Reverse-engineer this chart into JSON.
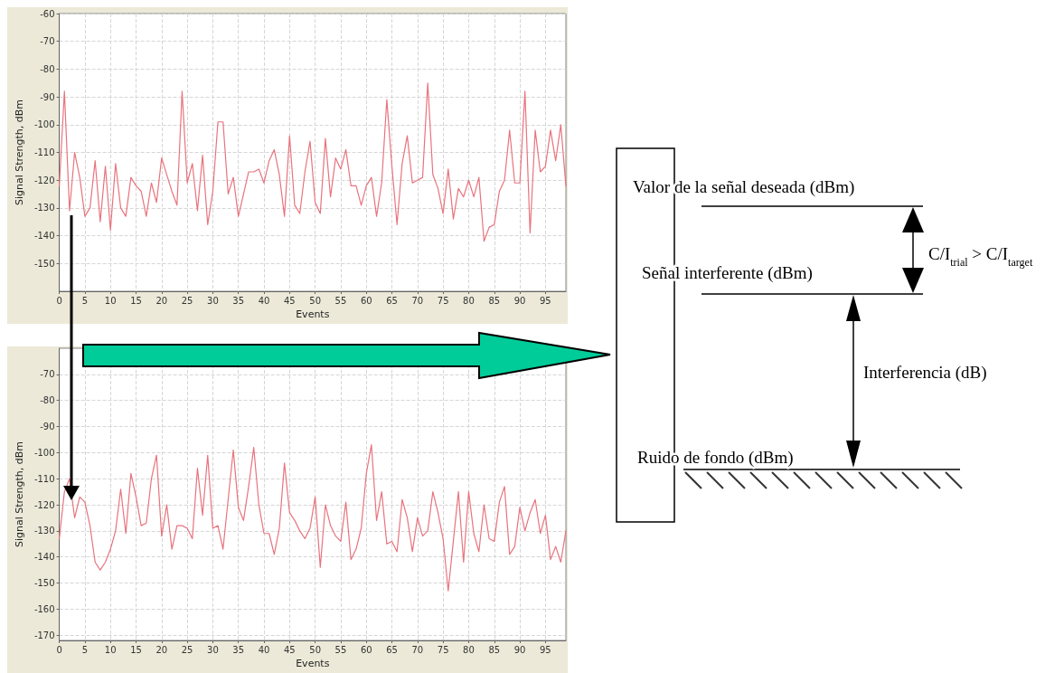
{
  "chart_data": [
    {
      "type": "line",
      "xlabel": "Events",
      "ylabel": "Signal Strength, dBm",
      "xlim": [
        0,
        99
      ],
      "ylim": [
        -160,
        -60
      ],
      "xticks": [
        0,
        5,
        10,
        15,
        20,
        25,
        30,
        35,
        40,
        45,
        50,
        55,
        60,
        65,
        70,
        75,
        80,
        85,
        90,
        95
      ],
      "yticks": [
        -150,
        -140,
        -130,
        -120,
        -110,
        -100,
        -90,
        -80,
        -70,
        -60
      ],
      "grid": true,
      "marker": "none",
      "line_style": "solid",
      "x": [
        0,
        1,
        2,
        3,
        4,
        5,
        6,
        7,
        8,
        9,
        10,
        11,
        12,
        13,
        14,
        15,
        16,
        17,
        18,
        19,
        20,
        21,
        22,
        23,
        24,
        25,
        26,
        27,
        28,
        29,
        30,
        31,
        32,
        33,
        34,
        35,
        36,
        37,
        38,
        39,
        40,
        41,
        42,
        43,
        44,
        45,
        46,
        47,
        48,
        49,
        50,
        51,
        52,
        53,
        54,
        55,
        56,
        57,
        58,
        59,
        60,
        61,
        62,
        63,
        64,
        65,
        66,
        67,
        68,
        69,
        70,
        71,
        72,
        73,
        74,
        75,
        76,
        77,
        78,
        79,
        80,
        81,
        82,
        83,
        84,
        85,
        86,
        87,
        88,
        89,
        90,
        91,
        92,
        93,
        94,
        95,
        96,
        97,
        98,
        99
      ],
      "series": [
        {
          "color": "#e8737d",
          "values": [
            -122,
            -88,
            -131,
            -110,
            -119,
            -133,
            -130,
            -113,
            -135,
            -115,
            -138,
            -114,
            -130,
            -133,
            -119,
            -122,
            -124,
            -133,
            -121,
            -128,
            -112,
            -118,
            -124,
            -129,
            -88,
            -121,
            -114,
            -131,
            -111,
            -136,
            -124,
            -99,
            -99,
            -125,
            -119,
            -133,
            -125,
            -117,
            -117,
            -116,
            -121,
            -113,
            -109,
            -118,
            -133,
            -104,
            -129,
            -132,
            -117,
            -106,
            -128,
            -132,
            -105,
            -126,
            -112,
            -116,
            -109,
            -122,
            -122,
            -129,
            -122,
            -119,
            -133,
            -121,
            -91,
            -115,
            -136,
            -114,
            -104,
            -121,
            -120,
            -119,
            -85,
            -118,
            -123,
            -132,
            -116,
            -134,
            -123,
            -126,
            -120,
            -126,
            -119,
            -142,
            -137,
            -136,
            -124,
            -120,
            -102,
            -121,
            -121,
            -88,
            -139,
            -102,
            -117,
            -115,
            -102,
            -113,
            -100,
            -122
          ]
        }
      ]
    },
    {
      "type": "line",
      "xlabel": "Events",
      "ylabel": "Signal Strength, dBm",
      "xlim": [
        0,
        99
      ],
      "ylim": [
        -172,
        -60
      ],
      "xticks": [
        0,
        5,
        10,
        15,
        20,
        25,
        30,
        35,
        40,
        45,
        50,
        55,
        60,
        65,
        70,
        75,
        80,
        85,
        90,
        95
      ],
      "yticks": [
        -170,
        -160,
        -150,
        -140,
        -130,
        -120,
        -110,
        -100,
        -90,
        -80,
        -70
      ],
      "grid": true,
      "marker": "none",
      "line_style": "solid",
      "x": [
        0,
        1,
        2,
        3,
        4,
        5,
        6,
        7,
        8,
        9,
        10,
        11,
        12,
        13,
        14,
        15,
        16,
        17,
        18,
        19,
        20,
        21,
        22,
        23,
        24,
        25,
        26,
        27,
        28,
        29,
        30,
        31,
        32,
        33,
        34,
        35,
        36,
        37,
        38,
        39,
        40,
        41,
        42,
        43,
        44,
        45,
        46,
        47,
        48,
        49,
        50,
        51,
        52,
        53,
        54,
        55,
        56,
        57,
        58,
        59,
        60,
        61,
        62,
        63,
        64,
        65,
        66,
        67,
        68,
        69,
        70,
        71,
        72,
        73,
        74,
        75,
        76,
        77,
        78,
        79,
        80,
        81,
        82,
        83,
        84,
        85,
        86,
        87,
        88,
        89,
        90,
        91,
        92,
        93,
        94,
        95,
        96,
        97,
        98,
        99
      ],
      "series": [
        {
          "color": "#e8737d",
          "values": [
            -133,
            -115,
            -110,
            -125,
            -117,
            -119,
            -128,
            -142,
            -145,
            -142,
            -137,
            -130,
            -114,
            -131,
            -108,
            -117,
            -128,
            -127,
            -110,
            -101,
            -132,
            -120,
            -137,
            -128,
            -128,
            -129,
            -133,
            -106,
            -124,
            -101,
            -129,
            -128,
            -137,
            -118,
            -99,
            -121,
            -126,
            -113,
            -98,
            -120,
            -131,
            -131,
            -139,
            -129,
            -104,
            -123,
            -126,
            -130,
            -133,
            -129,
            -117,
            -144,
            -120,
            -128,
            -132,
            -134,
            -119,
            -141,
            -137,
            -129,
            -108,
            -97,
            -126,
            -115,
            -135,
            -134,
            -138,
            -118,
            -125,
            -138,
            -125,
            -132,
            -130,
            -115,
            -123,
            -133,
            -153,
            -134,
            -115,
            -142,
            -115,
            -131,
            -138,
            -120,
            -133,
            -134,
            -119,
            -113,
            -139,
            -136,
            -121,
            -130,
            -123,
            -118,
            -131,
            -124,
            -141,
            -136,
            -142,
            -130
          ]
        }
      ]
    },
    {
      "type": "other",
      "annotations": [
        "Valor de la señal deseada (dBm)",
        "Señal interferente (dBm)",
        "C/I$_{trial}$ > C/I$_{target}$",
        "Interferencia (dB)",
        "Ruido de fondo (dBm)"
      ]
    }
  ]
}
